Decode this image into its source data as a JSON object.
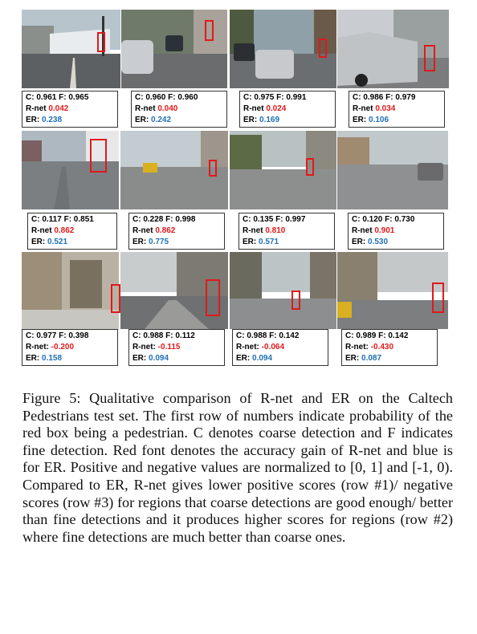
{
  "colors": {
    "coarse_fine": "#000000",
    "rnet_gain": "#e0191b",
    "er_gain": "#1f6fb5",
    "box": "#e0191b"
  },
  "rows": [
    {
      "cells": [
        {
          "c": "C: 0.961",
          "f": "F: 0.965",
          "rnet_label": "R-net",
          "rnet": "0.042",
          "er_label": "ER:",
          "er": "0.238"
        },
        {
          "c": "C: 0.960",
          "f": "F: 0.960",
          "rnet_label": "R-net",
          "rnet": "0.040",
          "er_label": "ER:",
          "er": "0.242"
        },
        {
          "c": "C: 0.975",
          "f": "F: 0.991",
          "rnet_label": "R-net",
          "rnet": "0.024",
          "er_label": "ER:",
          "er": "0.169"
        },
        {
          "c": "C: 0.986",
          "f": "F: 0.979",
          "rnet_label": "R-net",
          "rnet": "0.034",
          "er_label": "ER:",
          "er": "0.106"
        }
      ]
    },
    {
      "cells": [
        {
          "c": "C: 0.117",
          "f": "F: 0.851",
          "rnet_label": "R-net",
          "rnet": "0.862",
          "er_label": "ER:",
          "er": "0.521"
        },
        {
          "c": "C: 0.228",
          "f": "F: 0.998",
          "rnet_label": "R-net",
          "rnet": "0.862",
          "er_label": "ER:",
          "er": "0.775"
        },
        {
          "c": "C: 0.135",
          "f": "F: 0.997",
          "rnet_label": "R-net",
          "rnet": "0.810",
          "er_label": "ER:",
          "er": "0.571"
        },
        {
          "c": "C: 0.120",
          "f": "F: 0.730",
          "rnet_label": "R-net",
          "rnet": "0.901",
          "er_label": "ER:",
          "er": "0.530"
        }
      ]
    },
    {
      "cells": [
        {
          "c": "C: 0.977",
          "f": "F: 0.398",
          "rnet_label": "R-net:",
          "rnet": "-0.200",
          "er_label": "ER:",
          "er": "0.158"
        },
        {
          "c": "C: 0.988",
          "f": "F: 0.112",
          "rnet_label": "R-net:",
          "rnet": "-0.115",
          "er_label": "ER:",
          "er": "0.094"
        },
        {
          "c": "C: 0.988",
          "f": "F: 0.142",
          "rnet_label": "R-net:",
          "rnet": "-0.064",
          "er_label": "ER:",
          "er": "0.094"
        },
        {
          "c": "C: 0.989",
          "f": "F: 0.142",
          "rnet_label": "R-net:",
          "rnet": "-0.430",
          "er_label": "ER:",
          "er": "0.087"
        }
      ]
    }
  ],
  "caption": "Figure 5: Qualitative comparison of R-net and ER on the Caltech Pedestrians test set. The first row of numbers indicate probability of the red box being a pedestrian. C denotes coarse detection and F indicates fine detection. Red font denotes the accuracy gain of R-net and blue is for ER. Positive and negative values are normalized to [0, 1] and [-1, 0). Compared to ER, R-net gives lower positive scores (row #1)/ negative scores (row #3) for regions that coarse detections are good enough/ better than fine detections and it produces higher scores for regions (row #2) where fine detections are much better than coarse ones."
}
